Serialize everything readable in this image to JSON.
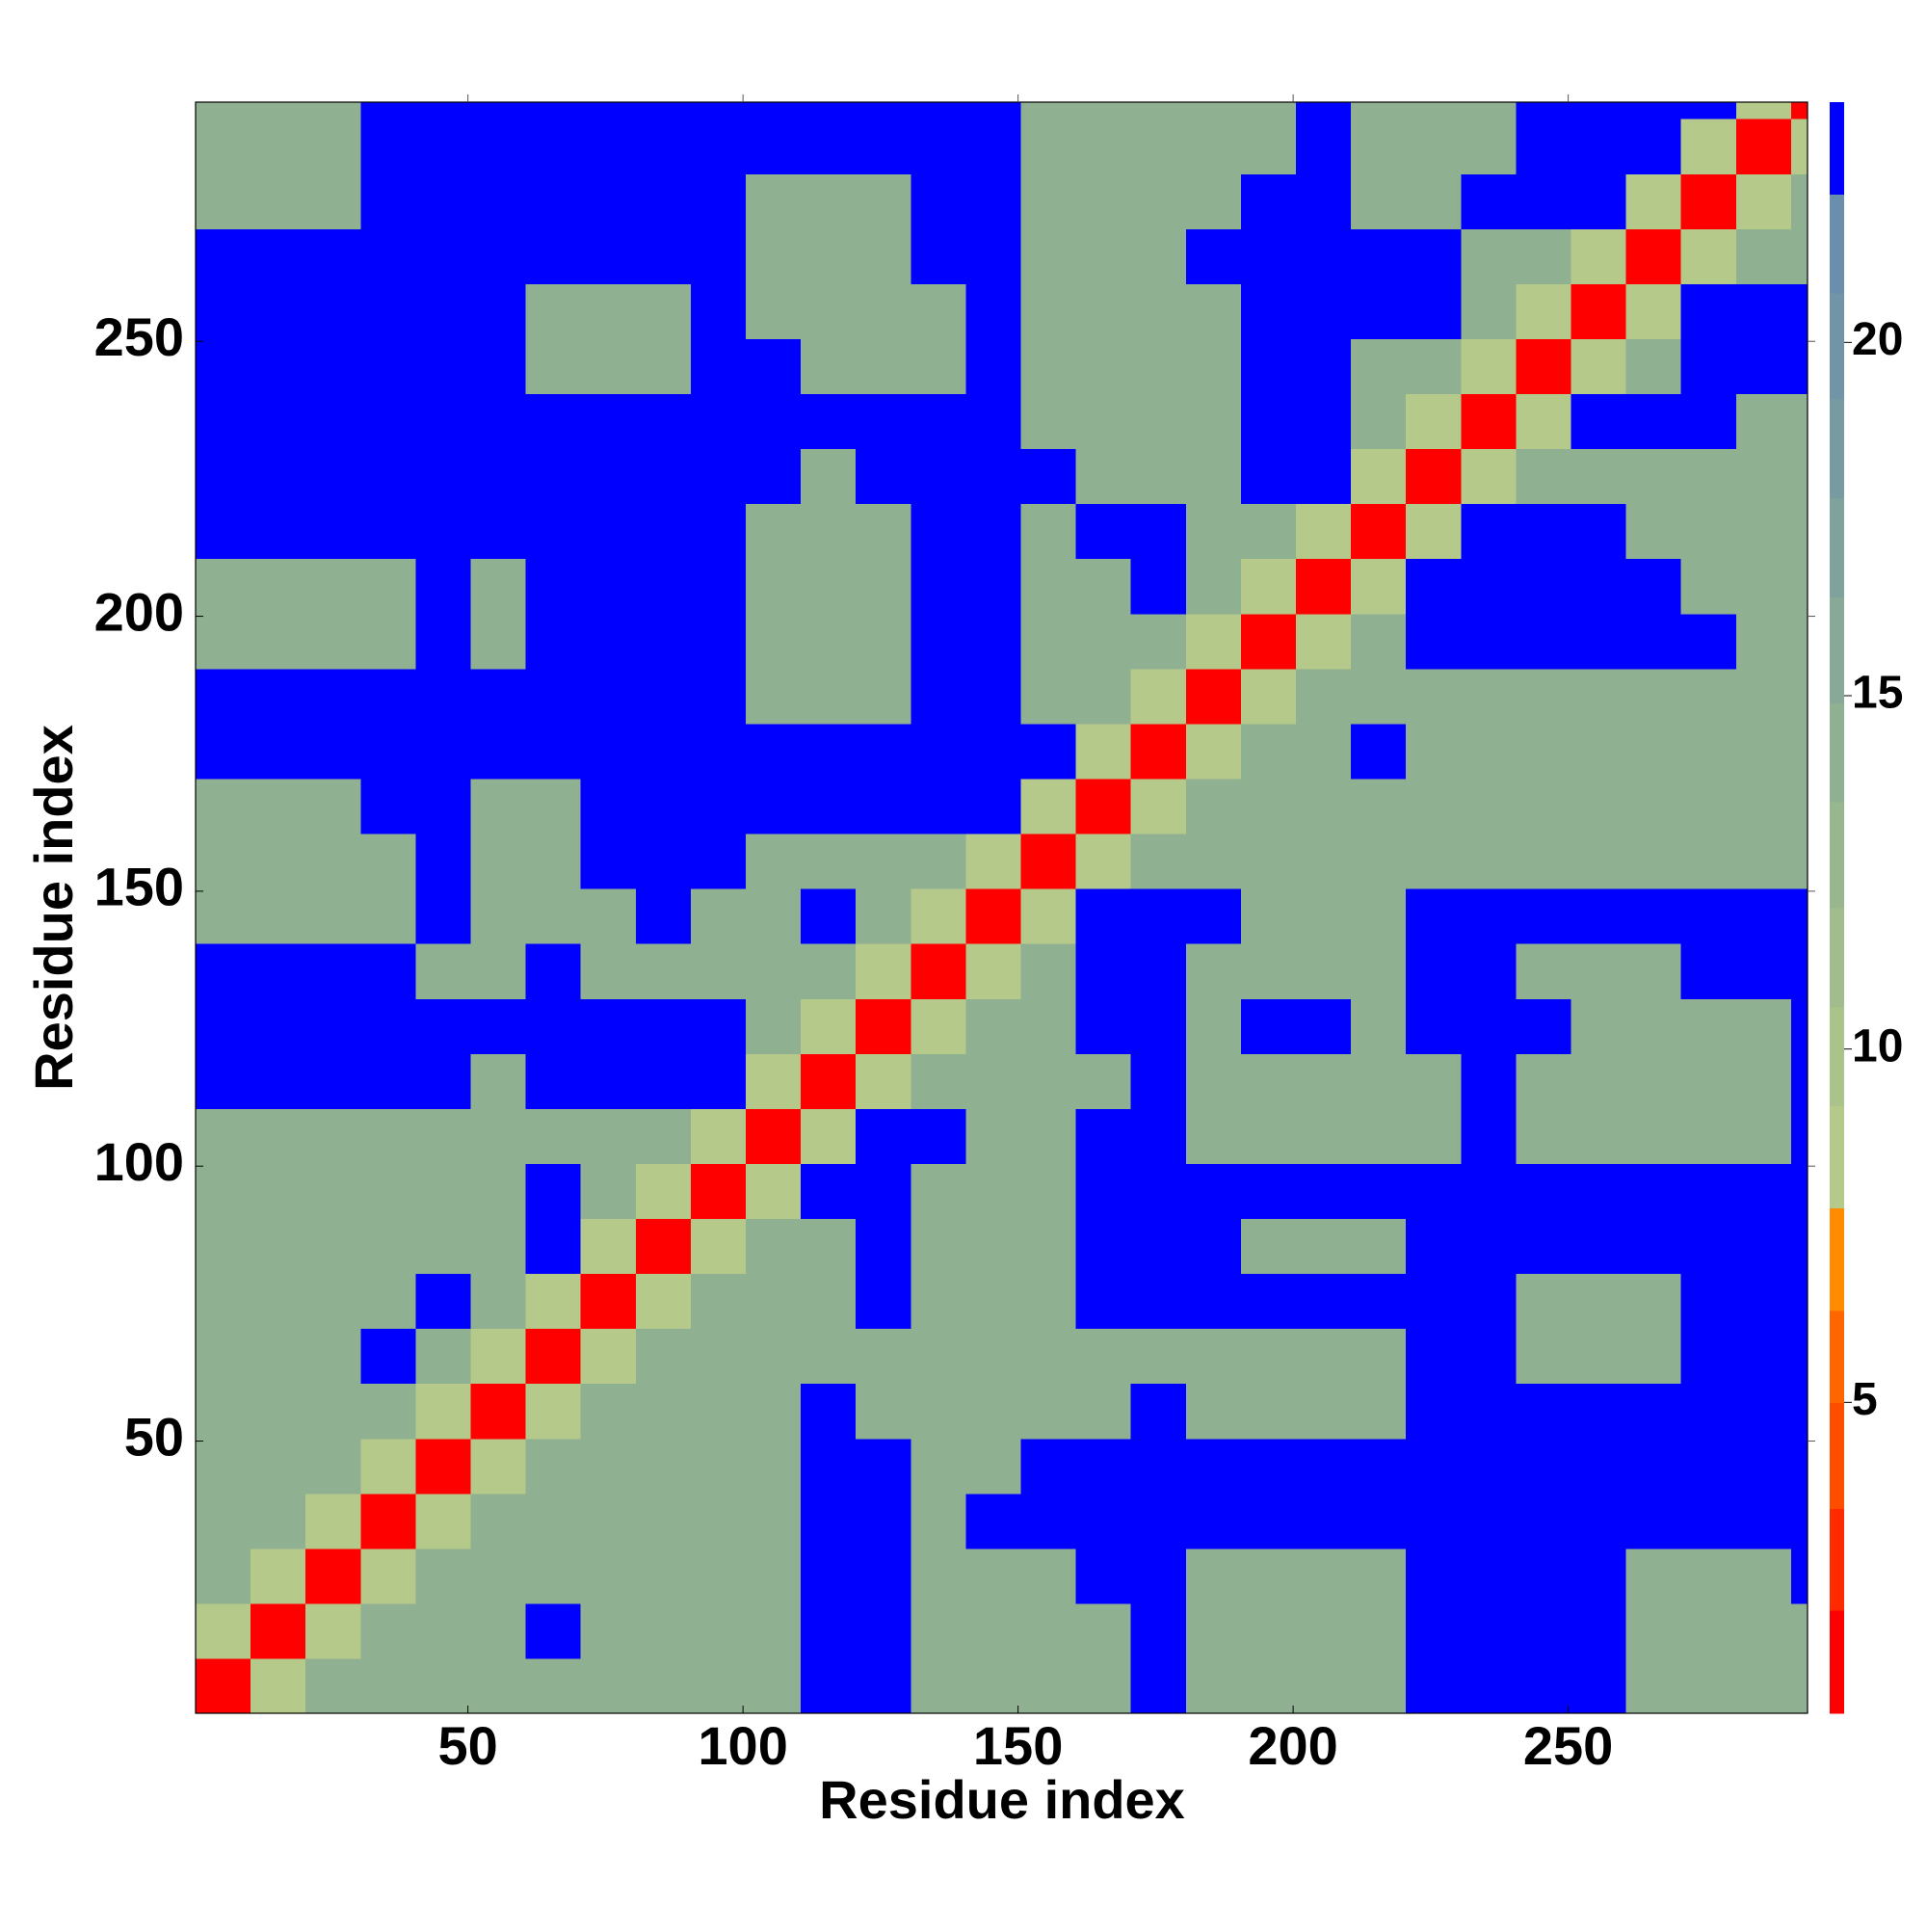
{
  "chart_data": {
    "type": "heatmap",
    "xlabel": "Residue index",
    "ylabel": "Residue index",
    "xlim": [
      0.5,
      293.5
    ],
    "ylim": [
      0.5,
      293.5
    ],
    "xticks": [
      50,
      100,
      150,
      200,
      250
    ],
    "yticks": [
      50,
      100,
      150,
      200,
      250
    ],
    "xbins": [
      0.5,
      10.5,
      20.5,
      30.5,
      40.5,
      50.5,
      60.5,
      70.5,
      80.5,
      90.5,
      100.5,
      110.5,
      120.5,
      130.5,
      140.5,
      150.5,
      160.5,
      170.5,
      180.5,
      190.5,
      200.5,
      210.5,
      220.5,
      230.5,
      240.5,
      250.5,
      260.5,
      270.5,
      280.5,
      290.5,
      293.5
    ],
    "ybins": [
      0.5,
      10.5,
      20.5,
      30.5,
      40.5,
      50.5,
      60.5,
      70.5,
      80.5,
      90.5,
      100.5,
      110.5,
      120.5,
      130.5,
      140.5,
      150.5,
      160.5,
      170.5,
      180.5,
      190.5,
      200.5,
      210.5,
      220.5,
      230.5,
      240.5,
      250.5,
      260.5,
      270.5,
      280.5,
      290.5,
      293.5
    ],
    "z": [
      [
        2,
        9,
        14,
        14,
        14,
        14,
        14,
        14,
        14,
        14,
        14,
        23,
        23,
        14,
        14,
        14,
        14,
        23,
        14,
        14,
        14,
        14,
        23,
        23,
        23,
        23,
        14,
        14,
        14,
        14
      ],
      [
        9,
        2,
        9,
        14,
        14,
        14,
        23,
        14,
        14,
        14,
        14,
        23,
        23,
        14,
        14,
        14,
        14,
        23,
        14,
        14,
        14,
        14,
        23,
        23,
        23,
        23,
        14,
        14,
        14,
        14
      ],
      [
        14,
        9,
        2,
        9,
        14,
        14,
        14,
        14,
        14,
        14,
        14,
        23,
        23,
        14,
        14,
        14,
        23,
        23,
        14,
        14,
        14,
        14,
        23,
        23,
        23,
        23,
        14,
        14,
        14,
        23
      ],
      [
        14,
        14,
        9,
        2,
        9,
        14,
        14,
        14,
        14,
        14,
        14,
        23,
        23,
        14,
        23,
        23,
        23,
        23,
        23,
        23,
        23,
        23,
        23,
        23,
        23,
        23,
        23,
        23,
        23,
        23
      ],
      [
        14,
        14,
        14,
        9,
        2,
        9,
        14,
        14,
        14,
        14,
        14,
        23,
        23,
        14,
        14,
        23,
        23,
        23,
        23,
        23,
        23,
        23,
        23,
        23,
        23,
        23,
        23,
        23,
        23,
        23
      ],
      [
        14,
        14,
        14,
        14,
        9,
        2,
        9,
        14,
        14,
        14,
        14,
        23,
        14,
        14,
        14,
        14,
        14,
        23,
        14,
        14,
        14,
        14,
        23,
        23,
        23,
        23,
        23,
        23,
        23,
        23
      ],
      [
        14,
        14,
        14,
        23,
        14,
        9,
        2,
        9,
        14,
        14,
        14,
        14,
        14,
        14,
        14,
        14,
        14,
        14,
        14,
        14,
        14,
        14,
        23,
        23,
        14,
        14,
        14,
        23,
        23,
        23
      ],
      [
        14,
        14,
        14,
        14,
        23,
        14,
        9,
        2,
        9,
        14,
        14,
        14,
        23,
        14,
        14,
        14,
        23,
        23,
        23,
        23,
        23,
        23,
        23,
        23,
        14,
        14,
        14,
        23,
        23,
        23
      ],
      [
        14,
        14,
        14,
        14,
        14,
        14,
        23,
        9,
        2,
        9,
        14,
        14,
        23,
        14,
        14,
        14,
        23,
        23,
        23,
        14,
        14,
        14,
        23,
        23,
        23,
        23,
        23,
        23,
        23,
        23
      ],
      [
        14,
        14,
        14,
        14,
        14,
        14,
        23,
        14,
        9,
        2,
        9,
        23,
        23,
        14,
        14,
        14,
        23,
        23,
        23,
        23,
        23,
        23,
        23,
        23,
        23,
        23,
        23,
        23,
        23,
        23
      ],
      [
        14,
        14,
        14,
        14,
        14,
        14,
        14,
        14,
        14,
        9,
        2,
        9,
        23,
        23,
        14,
        14,
        23,
        23,
        14,
        14,
        14,
        14,
        14,
        23,
        14,
        14,
        14,
        14,
        14,
        23
      ],
      [
        23,
        23,
        23,
        23,
        23,
        14,
        23,
        23,
        23,
        23,
        9,
        2,
        9,
        14,
        14,
        14,
        14,
        23,
        14,
        14,
        14,
        14,
        14,
        23,
        14,
        14,
        14,
        14,
        14,
        23
      ],
      [
        23,
        23,
        23,
        23,
        23,
        23,
        23,
        23,
        23,
        23,
        14,
        9,
        2,
        9,
        14,
        14,
        23,
        23,
        14,
        23,
        23,
        14,
        23,
        23,
        23,
        14,
        14,
        14,
        14,
        23
      ],
      [
        23,
        23,
        23,
        23,
        14,
        14,
        23,
        14,
        14,
        14,
        14,
        14,
        9,
        2,
        9,
        14,
        23,
        23,
        14,
        14,
        14,
        14,
        23,
        23,
        14,
        14,
        14,
        23,
        23,
        23
      ],
      [
        14,
        14,
        14,
        14,
        23,
        14,
        14,
        14,
        23,
        14,
        14,
        23,
        14,
        9,
        2,
        9,
        23,
        23,
        23,
        14,
        14,
        14,
        23,
        23,
        23,
        23,
        23,
        23,
        23,
        23
      ],
      [
        14,
        14,
        14,
        14,
        23,
        14,
        14,
        23,
        23,
        23,
        14,
        14,
        14,
        14,
        9,
        2,
        9,
        14,
        14,
        14,
        14,
        14,
        14,
        14,
        14,
        14,
        14,
        14,
        14,
        14
      ],
      [
        14,
        14,
        14,
        23,
        23,
        14,
        14,
        23,
        23,
        23,
        23,
        23,
        23,
        23,
        23,
        9,
        2,
        9,
        14,
        14,
        14,
        14,
        14,
        14,
        14,
        14,
        14,
        14,
        14,
        14
      ],
      [
        23,
        23,
        23,
        23,
        23,
        23,
        23,
        23,
        23,
        23,
        23,
        23,
        23,
        23,
        23,
        23,
        9,
        2,
        9,
        14,
        14,
        23,
        14,
        14,
        14,
        14,
        14,
        14,
        14,
        14
      ],
      [
        23,
        23,
        23,
        23,
        23,
        23,
        23,
        23,
        23,
        23,
        14,
        14,
        14,
        23,
        23,
        14,
        14,
        9,
        2,
        9,
        14,
        14,
        14,
        14,
        14,
        14,
        14,
        14,
        14,
        14
      ],
      [
        14,
        14,
        14,
        14,
        23,
        14,
        23,
        23,
        23,
        23,
        14,
        14,
        14,
        23,
        23,
        14,
        14,
        14,
        9,
        2,
        9,
        14,
        23,
        23,
        23,
        23,
        23,
        23,
        14,
        14
      ],
      [
        14,
        14,
        14,
        14,
        23,
        14,
        23,
        23,
        23,
        23,
        14,
        14,
        14,
        23,
        23,
        14,
        14,
        23,
        14,
        9,
        2,
        9,
        23,
        23,
        23,
        23,
        23,
        14,
        14,
        14
      ],
      [
        23,
        23,
        23,
        23,
        23,
        23,
        23,
        23,
        23,
        23,
        14,
        14,
        14,
        23,
        23,
        14,
        23,
        23,
        14,
        14,
        9,
        2,
        9,
        23,
        23,
        23,
        14,
        14,
        14,
        14
      ],
      [
        23,
        23,
        23,
        23,
        23,
        23,
        23,
        23,
        23,
        23,
        23,
        14,
        23,
        23,
        23,
        23,
        14,
        14,
        14,
        23,
        23,
        9,
        2,
        9,
        14,
        14,
        14,
        14,
        14,
        14
      ],
      [
        23,
        23,
        23,
        23,
        23,
        23,
        23,
        23,
        23,
        23,
        23,
        23,
        23,
        23,
        23,
        14,
        14,
        14,
        14,
        23,
        23,
        14,
        9,
        2,
        9,
        23,
        23,
        23,
        14,
        14
      ],
      [
        23,
        23,
        23,
        23,
        23,
        23,
        14,
        14,
        14,
        23,
        23,
        14,
        14,
        14,
        23,
        14,
        14,
        14,
        14,
        23,
        23,
        14,
        14,
        9,
        2,
        9,
        14,
        23,
        23,
        23
      ],
      [
        23,
        23,
        23,
        23,
        23,
        23,
        14,
        14,
        14,
        23,
        14,
        14,
        14,
        14,
        23,
        14,
        14,
        14,
        14,
        23,
        23,
        23,
        23,
        14,
        9,
        2,
        9,
        23,
        23,
        23
      ],
      [
        23,
        23,
        23,
        23,
        23,
        23,
        23,
        23,
        23,
        23,
        14,
        14,
        14,
        23,
        23,
        14,
        14,
        14,
        23,
        23,
        23,
        23,
        23,
        14,
        14,
        9,
        2,
        9,
        14,
        14
      ],
      [
        14,
        14,
        14,
        23,
        23,
        23,
        23,
        23,
        23,
        23,
        14,
        14,
        14,
        23,
        23,
        14,
        14,
        14,
        14,
        23,
        23,
        14,
        14,
        23,
        23,
        23,
        9,
        2,
        9,
        14
      ],
      [
        14,
        14,
        14,
        23,
        23,
        23,
        23,
        23,
        23,
        23,
        23,
        23,
        23,
        23,
        23,
        14,
        14,
        14,
        14,
        14,
        23,
        14,
        14,
        14,
        23,
        23,
        23,
        9,
        2,
        9
      ],
      [
        14,
        14,
        14,
        23,
        23,
        23,
        23,
        23,
        23,
        23,
        23,
        23,
        23,
        23,
        23,
        14,
        14,
        14,
        14,
        14,
        23,
        14,
        14,
        14,
        23,
        23,
        23,
        23,
        9,
        2
      ]
    ],
    "colorbar": {
      "lim": [
        0.6,
        23.4
      ],
      "ticks": [
        5,
        10,
        15,
        20
      ],
      "levels": [
        0.6,
        2.06,
        3.5,
        5,
        6.3,
        7.75,
        9.2,
        10.6,
        12,
        13.5,
        14.9,
        16.4,
        17.8,
        19.2,
        20.7,
        22.1,
        23.4
      ],
      "colors": [
        "#ff0000",
        "#ff2a00",
        "#ff4d00",
        "#ff6600",
        "#ff8c00",
        "#b4c98a",
        "#a9c38b",
        "#a1bd8e",
        "#98b78f",
        "#90b092",
        "#88a997",
        "#80a29c",
        "#789ba2",
        "#7194a7",
        "#6a8eac",
        "#0000ff"
      ]
    }
  }
}
